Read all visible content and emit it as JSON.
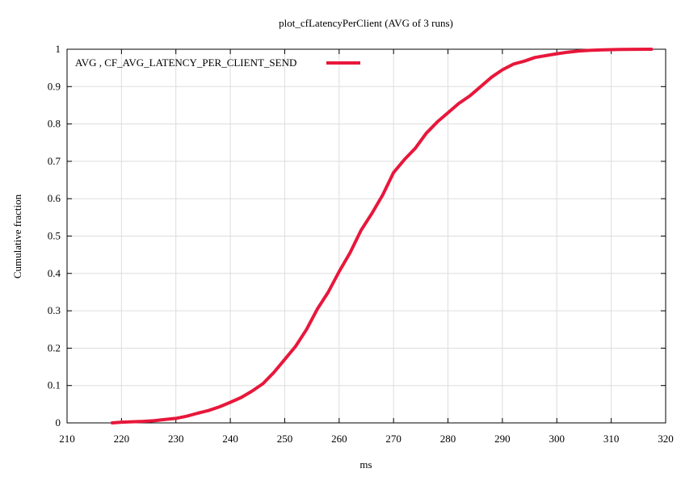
{
  "chart_data": {
    "type": "line",
    "title": "plot_cfLatencyPerClient (AVG of 3 runs)",
    "xlabel": "ms",
    "ylabel": "Cumulative fraction",
    "xlim": [
      210,
      320
    ],
    "ylim": [
      0,
      1
    ],
    "x_ticks": [
      "210",
      "220",
      "230",
      "240",
      "250",
      "260",
      "270",
      "280",
      "290",
      "300",
      "310",
      "320"
    ],
    "y_ticks": [
      "0",
      "0.1",
      "0.2",
      "0.3",
      "0.4",
      "0.5",
      "0.6",
      "0.7",
      "0.8",
      "0.9",
      "1"
    ],
    "grid": true,
    "legend_position": "top-left",
    "series": [
      {
        "name": "AVG , CF_AVG_LATENCY_PER_CLIENT_SEND",
        "color": "#e8173b",
        "x": [
          218.3,
          220,
          222,
          224,
          226,
          228,
          230,
          232,
          234,
          236,
          238,
          240,
          242,
          244,
          246,
          248,
          250,
          252,
          254,
          256,
          258,
          260,
          262,
          264,
          266,
          268,
          270,
          272,
          274,
          276,
          278,
          280,
          282,
          284,
          286,
          288,
          290,
          292,
          294,
          296,
          298,
          300,
          302,
          304,
          306,
          308,
          310,
          312,
          314,
          317.4
        ],
        "values": [
          0.0,
          0.002,
          0.003,
          0.004,
          0.006,
          0.009,
          0.012,
          0.018,
          0.026,
          0.033,
          0.043,
          0.055,
          0.068,
          0.085,
          0.105,
          0.135,
          0.17,
          0.205,
          0.25,
          0.305,
          0.35,
          0.405,
          0.455,
          0.515,
          0.56,
          0.61,
          0.67,
          0.705,
          0.735,
          0.775,
          0.805,
          0.83,
          0.855,
          0.875,
          0.9,
          0.925,
          0.945,
          0.96,
          0.968,
          0.978,
          0.983,
          0.988,
          0.992,
          0.995,
          0.997,
          0.998,
          0.999,
          0.9995,
          0.9998,
          1.0
        ]
      }
    ]
  }
}
